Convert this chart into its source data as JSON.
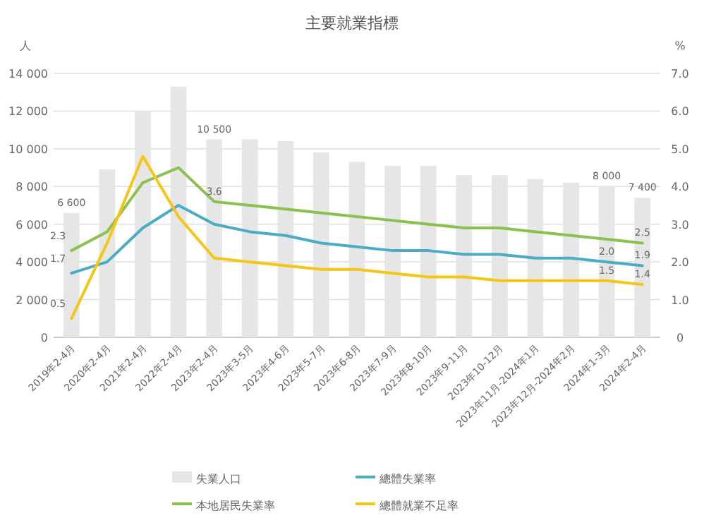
{
  "chart_data": {
    "type": "bar",
    "title": "主要就業指標",
    "ylabel": "人",
    "y2label": "%",
    "categories": [
      "2019年2-4月",
      "2020年2-4月",
      "2021年2-4月",
      "2022年2-4月",
      "2023年2-4月",
      "2023年3-5月",
      "2023年4-6月",
      "2023年5-7月",
      "2023年6-8月",
      "2023年7-9月",
      "2023年8-10月",
      "2023年9-11月",
      "2023年10-12月",
      "2023年11月-2024年1月",
      "2023年12月-2024年2月",
      "2024年1-3月",
      "2024年2-4月"
    ],
    "series": [
      {
        "name": "失業人口",
        "color": "#e6e6e6",
        "values": [
          6600,
          8900,
          12000,
          13300,
          10500,
          10500,
          10400,
          9800,
          9300,
          9100,
          9100,
          8600,
          8600,
          8400,
          8200,
          8000,
          7400
        ],
        "value_labels": [
          "6 600",
          null,
          null,
          null,
          "10 500",
          null,
          null,
          null,
          null,
          null,
          null,
          null,
          null,
          null,
          null,
          "8 000",
          "7 400"
        ]
      },
      {
        "name": "總體失業率",
        "type": "line",
        "axis": "y2",
        "color": "#4bacc6",
        "values": [
          1.7,
          2.0,
          2.9,
          3.5,
          3.0,
          2.8,
          2.7,
          2.5,
          2.4,
          2.3,
          2.3,
          2.2,
          2.2,
          2.1,
          2.1,
          2.0,
          1.9
        ],
        "value_labels": [
          "1.7",
          null,
          null,
          null,
          null,
          null,
          null,
          null,
          null,
          null,
          null,
          null,
          null,
          null,
          null,
          "2.0",
          "1.9"
        ]
      },
      {
        "name": "本地居民失業率",
        "type": "line",
        "axis": "y2",
        "color": "#8cc152",
        "values": [
          2.3,
          2.8,
          4.1,
          4.5,
          3.6,
          3.5,
          3.4,
          3.3,
          3.2,
          3.1,
          3.0,
          2.9,
          2.9,
          2.8,
          2.7,
          2.6,
          2.5
        ],
        "value_labels": [
          "2.3",
          null,
          null,
          null,
          "3.6",
          null,
          null,
          null,
          null,
          null,
          null,
          null,
          null,
          null,
          null,
          null,
          "2.5"
        ]
      },
      {
        "name": "總體就業不足率",
        "type": "line",
        "axis": "y2",
        "color": "#f5c518",
        "values": [
          0.5,
          2.5,
          4.8,
          3.2,
          2.1,
          2.0,
          1.9,
          1.8,
          1.8,
          1.7,
          1.6,
          1.6,
          1.5,
          1.5,
          1.5,
          1.5,
          1.4
        ],
        "value_labels": [
          "0.5",
          null,
          null,
          null,
          null,
          null,
          null,
          null,
          null,
          null,
          null,
          null,
          null,
          null,
          null,
          "1.5",
          "1.4"
        ]
      }
    ],
    "ylim": [
      0,
      14000
    ],
    "yticks": [
      {
        "value": 0,
        "label": "0"
      },
      {
        "value": 2000,
        "label": "2 000"
      },
      {
        "value": 4000,
        "label": "4 000"
      },
      {
        "value": 6000,
        "label": "6 000"
      },
      {
        "value": 8000,
        "label": "8 000"
      },
      {
        "value": 10000,
        "label": "10 000"
      },
      {
        "value": 12000,
        "label": "12 000"
      },
      {
        "value": 14000,
        "label": "14 000"
      }
    ],
    "y2lim": [
      0,
      7
    ],
    "y2ticks": [
      {
        "value": 0,
        "label": "0"
      },
      {
        "value": 1,
        "label": "1.0"
      },
      {
        "value": 2,
        "label": "2.0"
      },
      {
        "value": 3,
        "label": "3.0"
      },
      {
        "value": 4,
        "label": "4.0"
      },
      {
        "value": 5,
        "label": "5.0"
      },
      {
        "value": 6,
        "label": "6.0"
      },
      {
        "value": 7,
        "label": "7.0"
      }
    ],
    "grid": "y",
    "legend": "bottom"
  }
}
